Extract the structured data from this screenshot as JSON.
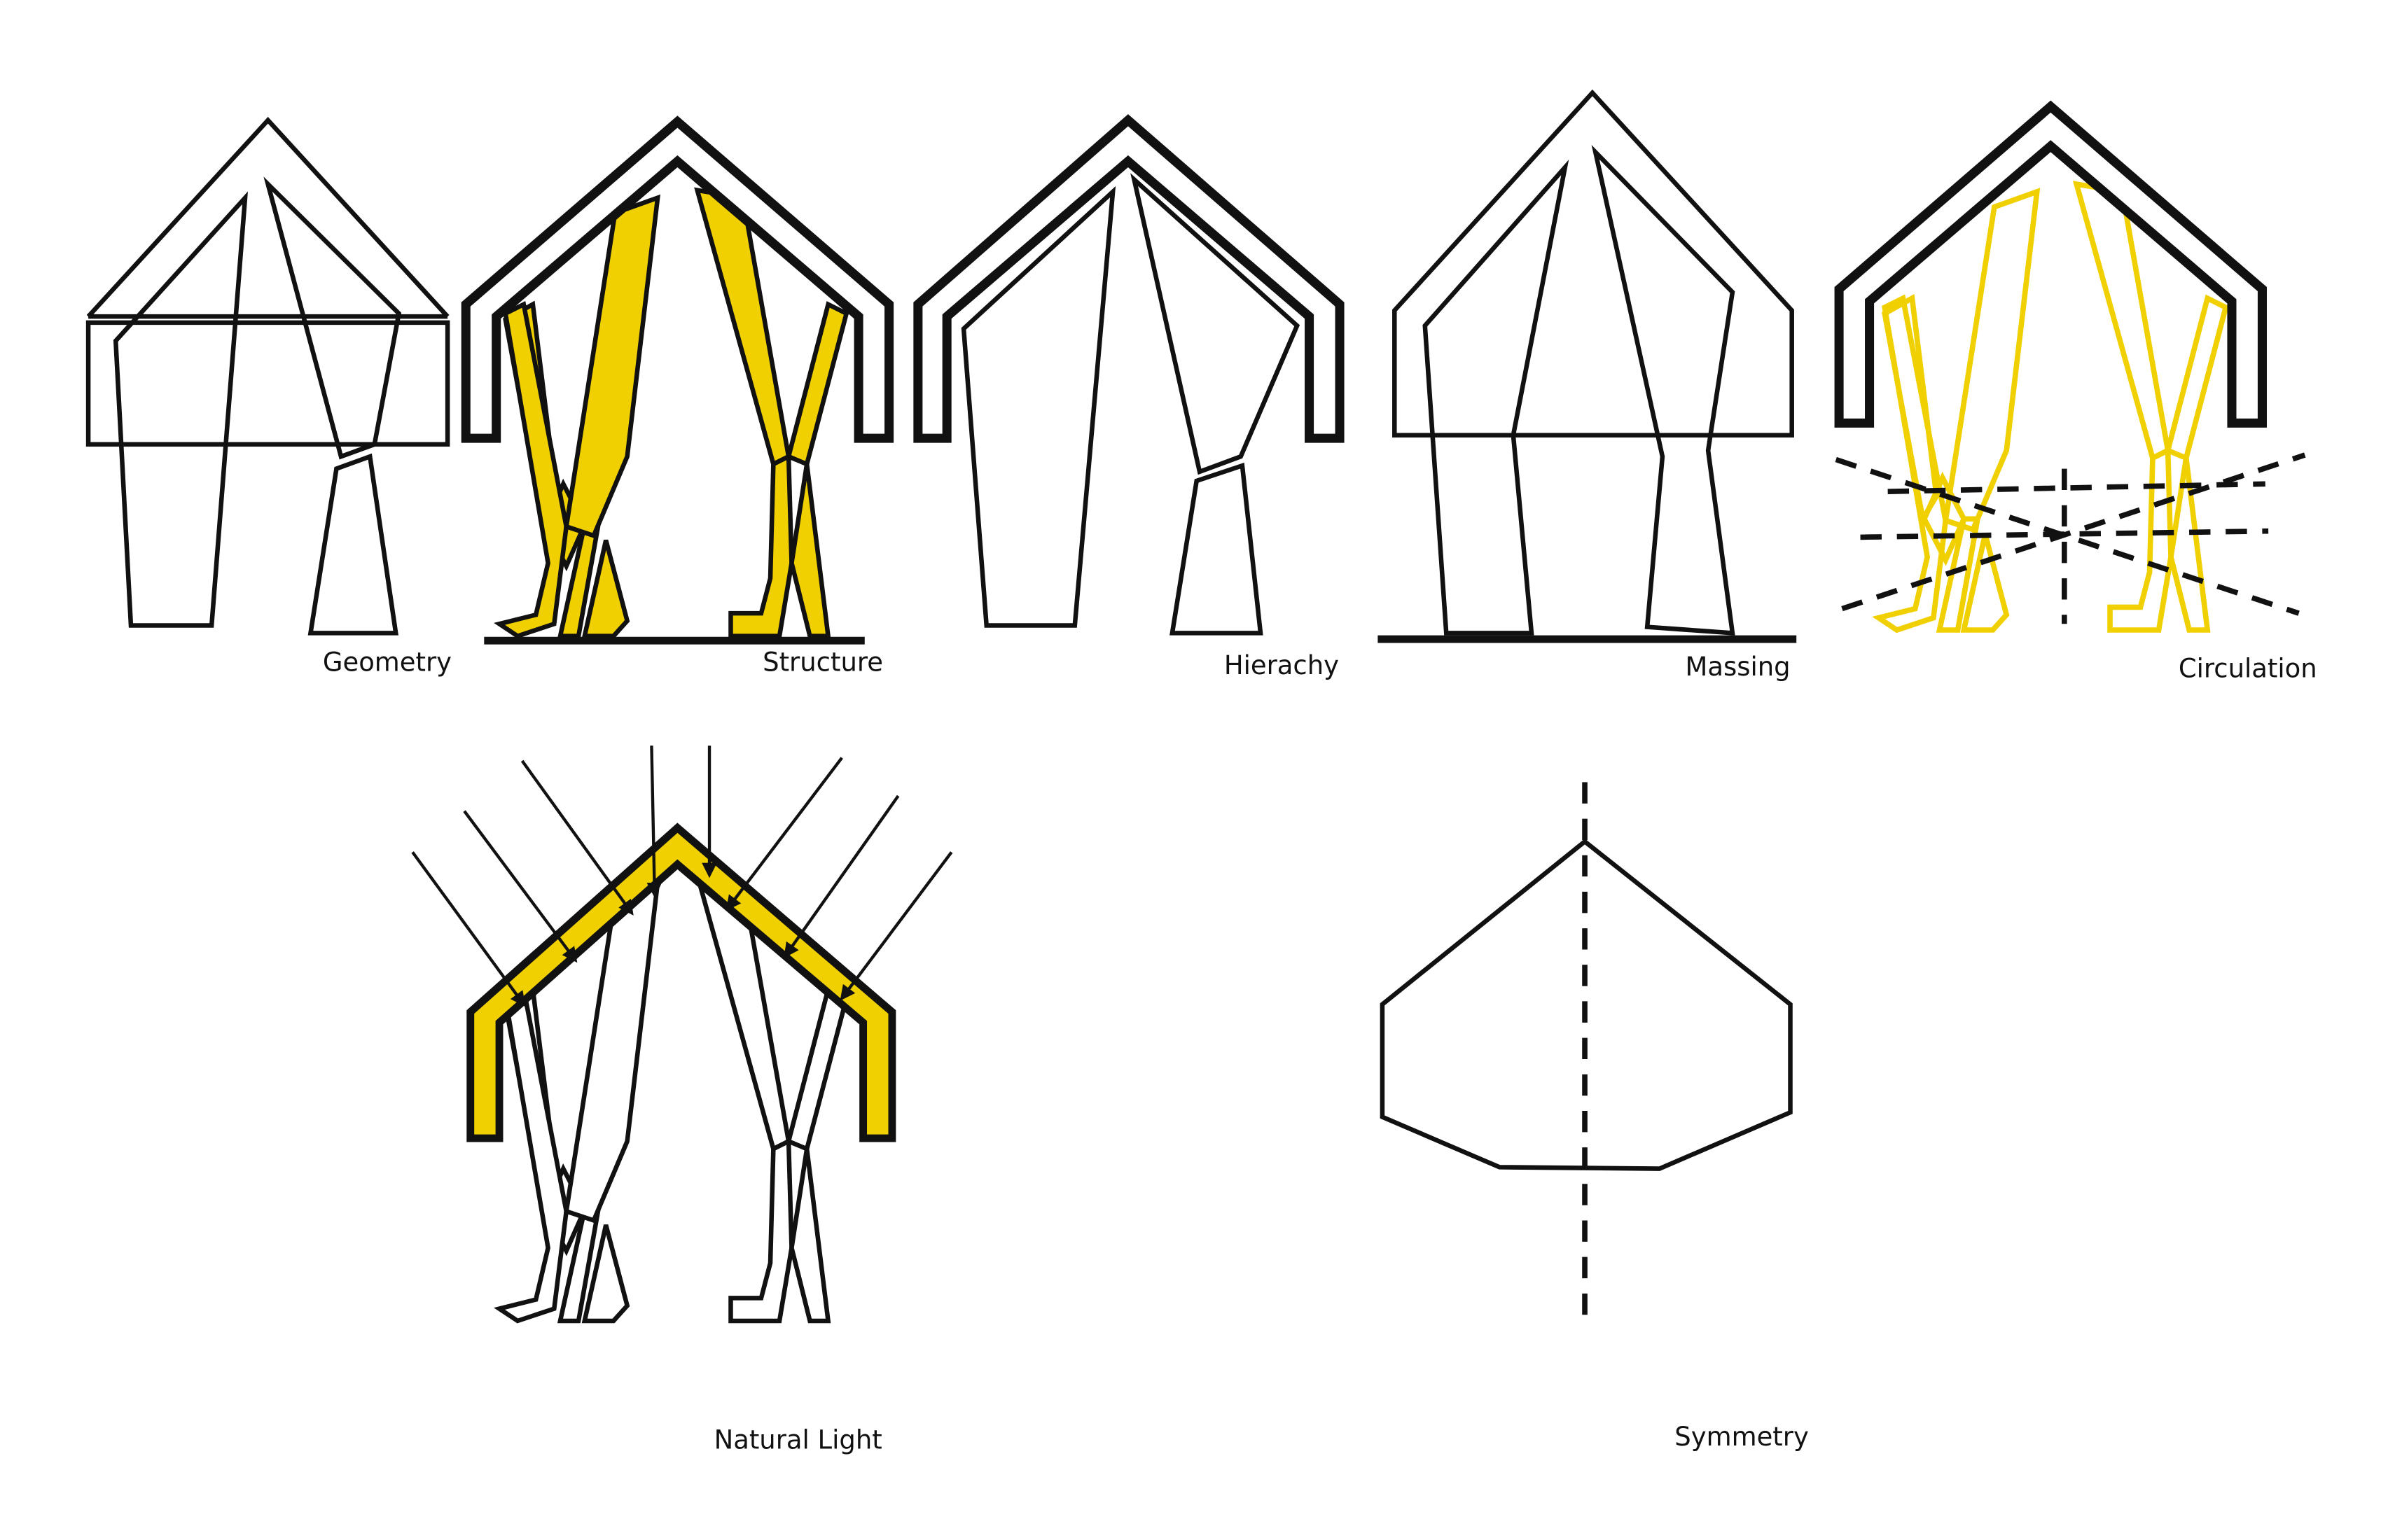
{
  "colors": {
    "accent": "#f0d000",
    "ink": "#111111",
    "background": "#ffffff"
  },
  "diagrams": {
    "geometry": {
      "label": "Geometry"
    },
    "structure": {
      "label": "Structure"
    },
    "hierarchy": {
      "label": "Hierachy"
    },
    "massing": {
      "label": "Massing"
    },
    "circulation": {
      "label": "Circulation"
    },
    "natural_light": {
      "label": "Natural Light"
    },
    "symmetry": {
      "label": "Symmetry"
    }
  }
}
